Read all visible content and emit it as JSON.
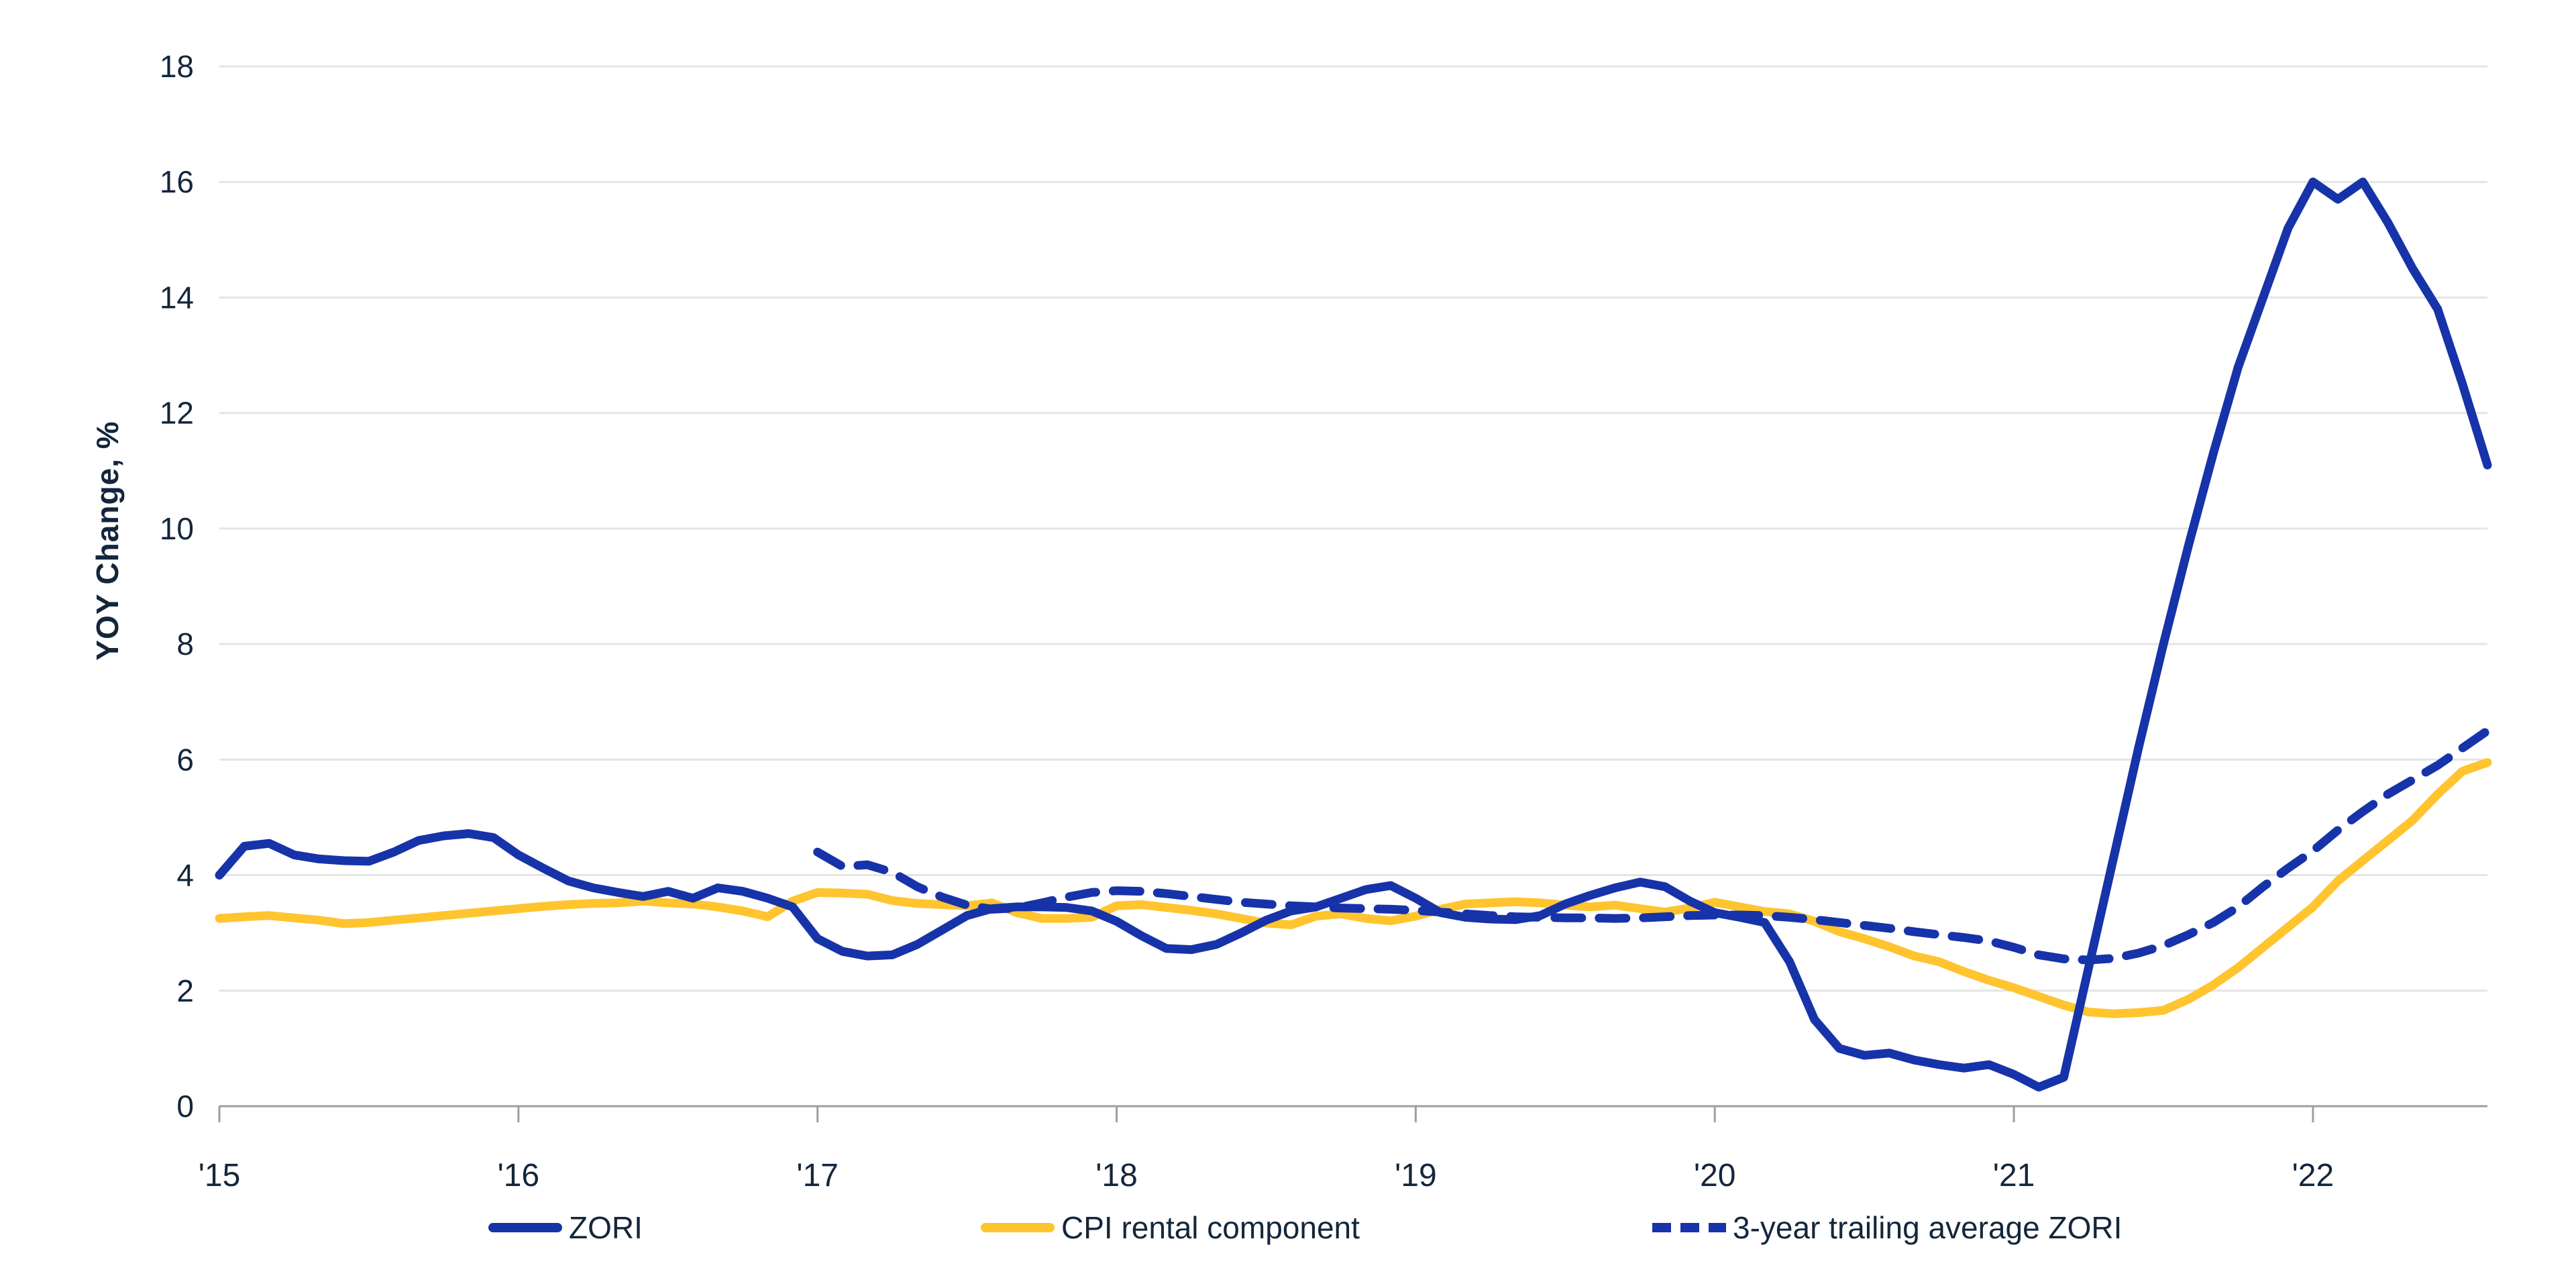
{
  "colors": {
    "zori_blue": "#1733A9",
    "cpi_yellow": "#FFC42E",
    "gridline": "#E4E4E4",
    "axis_line": "#9E9E9E",
    "text_dark": "#13263B",
    "background": "#FFFFFF"
  },
  "legend": {
    "zori_label": "ZORI",
    "cpi_label": "CPI rental component",
    "trailing_label": "3-year trailing average ZORI"
  },
  "chart_data": {
    "type": "line",
    "title": "",
    "xlabel": "",
    "ylabel": "YOY Change, %",
    "ylim": [
      0,
      18
    ],
    "y_ticks": [
      0,
      2,
      4,
      6,
      8,
      10,
      12,
      14,
      16,
      18
    ],
    "x_tick_labels": [
      "'15",
      "'16",
      "'17",
      "'18",
      "'19",
      "'20",
      "'21",
      "'22"
    ],
    "x_tick_month_indices": [
      0,
      12,
      24,
      36,
      48,
      60,
      72,
      84
    ],
    "x_start_month": "2015-01",
    "x_end_month": "2022-08",
    "n_points": 92,
    "grid": "horizontal-only",
    "legend_position": "bottom",
    "series": [
      {
        "name": "ZORI",
        "style": "solid",
        "color_key": "zori_blue",
        "values": [
          4.0,
          4.5,
          4.55,
          4.35,
          4.28,
          4.25,
          4.24,
          4.4,
          4.6,
          4.68,
          4.72,
          4.65,
          4.35,
          4.12,
          3.9,
          3.78,
          3.7,
          3.63,
          3.72,
          3.6,
          3.78,
          3.72,
          3.6,
          3.45,
          2.9,
          2.68,
          2.6,
          2.62,
          2.8,
          3.05,
          3.3,
          3.42,
          3.45,
          3.45,
          3.44,
          3.38,
          3.2,
          2.95,
          2.73,
          2.71,
          2.8,
          3.0,
          3.22,
          3.38,
          3.45,
          3.6,
          3.75,
          3.82,
          3.6,
          3.35,
          3.27,
          3.24,
          3.23,
          3.3,
          3.5,
          3.65,
          3.78,
          3.88,
          3.8,
          3.55,
          3.35,
          3.27,
          3.18,
          2.5,
          1.5,
          1.0,
          0.88,
          0.92,
          0.8,
          0.72,
          0.66,
          0.72,
          0.55,
          0.33,
          0.5,
          2.4,
          4.3,
          6.2,
          8.0,
          9.7,
          11.3,
          12.8,
          14.0,
          15.2,
          16.0,
          15.7,
          16.0,
          15.3,
          14.5,
          13.8,
          12.5,
          11.1
        ]
      },
      {
        "name": "CPI rental component",
        "style": "solid",
        "color_key": "cpi_yellow",
        "values": [
          3.25,
          3.28,
          3.3,
          3.26,
          3.22,
          3.16,
          3.18,
          3.22,
          3.26,
          3.3,
          3.34,
          3.38,
          3.42,
          3.46,
          3.49,
          3.51,
          3.52,
          3.55,
          3.52,
          3.5,
          3.45,
          3.38,
          3.28,
          3.55,
          3.7,
          3.69,
          3.67,
          3.56,
          3.51,
          3.49,
          3.47,
          3.52,
          3.35,
          3.25,
          3.25,
          3.27,
          3.47,
          3.49,
          3.44,
          3.39,
          3.33,
          3.25,
          3.17,
          3.14,
          3.29,
          3.33,
          3.25,
          3.21,
          3.29,
          3.41,
          3.5,
          3.52,
          3.54,
          3.52,
          3.48,
          3.45,
          3.48,
          3.42,
          3.36,
          3.43,
          3.53,
          3.45,
          3.37,
          3.33,
          3.2,
          3.02,
          2.9,
          2.76,
          2.6,
          2.5,
          2.33,
          2.18,
          2.05,
          1.9,
          1.75,
          1.63,
          1.6,
          1.62,
          1.66,
          1.85,
          2.1,
          2.4,
          2.75,
          3.1,
          3.45,
          3.9,
          4.25,
          4.6,
          4.95,
          5.4,
          5.8,
          5.95
        ]
      },
      {
        "name": "3-year trailing average ZORI",
        "style": "dashed",
        "color_key": "zori_blue",
        "values": [
          null,
          null,
          null,
          null,
          null,
          null,
          null,
          null,
          null,
          null,
          null,
          null,
          null,
          null,
          null,
          null,
          null,
          null,
          null,
          null,
          null,
          null,
          null,
          null,
          4.4,
          4.15,
          4.18,
          4.05,
          3.8,
          3.62,
          3.48,
          3.41,
          3.43,
          3.52,
          3.62,
          3.7,
          3.73,
          3.72,
          3.68,
          3.63,
          3.58,
          3.53,
          3.5,
          3.47,
          3.45,
          3.43,
          3.42,
          3.41,
          3.39,
          3.36,
          3.33,
          3.3,
          3.28,
          3.27,
          3.26,
          3.26,
          3.25,
          3.26,
          3.28,
          3.3,
          3.31,
          3.31,
          3.3,
          3.27,
          3.23,
          3.18,
          3.13,
          3.08,
          3.02,
          2.97,
          2.92,
          2.86,
          2.75,
          2.62,
          2.55,
          2.53,
          2.56,
          2.65,
          2.78,
          2.97,
          3.18,
          3.45,
          3.8,
          4.12,
          4.42,
          4.78,
          5.1,
          5.4,
          5.65,
          5.9,
          6.2,
          6.5
        ]
      }
    ],
    "layout": {
      "plot_left": 327,
      "plot_right": 3708,
      "plot_top": 99,
      "plot_bottom": 1649,
      "tick_len": 24,
      "line_width": 13,
      "dash_pattern": "40,26",
      "x_label_y": 1768,
      "x_label_font": 48,
      "y_label_font": 46,
      "legend_item_lefts": [
        728,
        1462,
        2463
      ]
    }
  }
}
